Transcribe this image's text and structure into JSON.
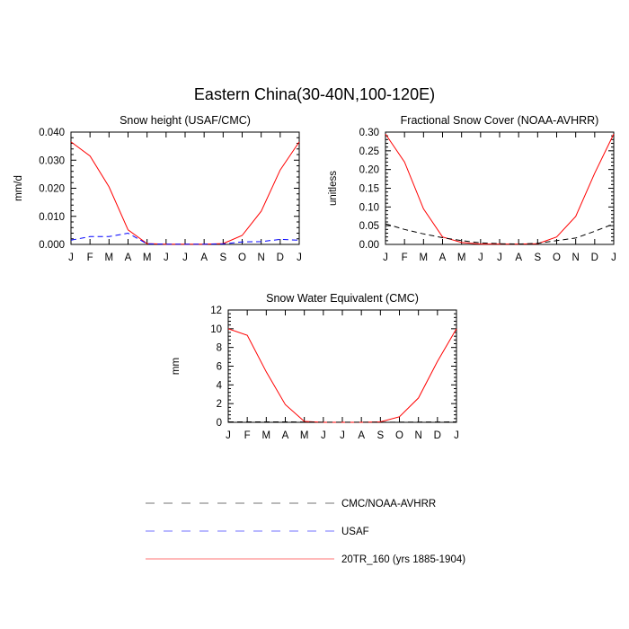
{
  "figure": {
    "title": "Eastern China(30-40N,100-120E)"
  },
  "colors": {
    "model": "#ff0000",
    "usaf": "#0000ff",
    "obs": "#000000"
  },
  "legend": [
    {
      "label": "CMC/NOAA-AVHRR",
      "color": "#000000",
      "dash": "dashed"
    },
    {
      "label": "USAF",
      "color": "#0000ff",
      "dash": "dashed"
    },
    {
      "label": "20TR_160 (yrs 1885-1904)",
      "color": "#ff0000",
      "dash": "solid"
    }
  ],
  "chart_data": [
    {
      "type": "line",
      "title": "Snow height (USAF/CMC)",
      "xlabel": "",
      "ylabel": "mm/d",
      "categories": [
        "J",
        "F",
        "M",
        "A",
        "M",
        "J",
        "J",
        "A",
        "S",
        "O",
        "N",
        "D",
        "J"
      ],
      "ylim": [
        0,
        0.04
      ],
      "yticks": [
        "0.000",
        "0.010",
        "0.020",
        "0.030",
        "0.040"
      ],
      "series": [
        {
          "name": "20TR_160 (yrs 1885-1904)",
          "style": "solid",
          "color": "#ff0000",
          "values": [
            0.0365,
            0.0315,
            0.0205,
            0.0052,
            0.0003,
            0.0001,
            0.0001,
            0.0001,
            0.0003,
            0.0032,
            0.0118,
            0.0265,
            0.0365
          ]
        },
        {
          "name": "USAF",
          "style": "dashed",
          "color": "#0000ff",
          "values": [
            0.0015,
            0.0028,
            0.0028,
            0.004,
            0.0002,
            0.0001,
            0.0001,
            0.0001,
            0.0002,
            0.0009,
            0.001,
            0.0018,
            0.0015
          ]
        }
      ]
    },
    {
      "type": "line",
      "title": "Fractional Snow Cover (NOAA-AVHRR)",
      "xlabel": "",
      "ylabel": "unitless",
      "categories": [
        "J",
        "F",
        "M",
        "A",
        "M",
        "J",
        "J",
        "A",
        "S",
        "O",
        "N",
        "D",
        "J"
      ],
      "ylim": [
        0,
        0.3
      ],
      "yticks": [
        "0.00",
        "0.05",
        "0.10",
        "0.15",
        "0.20",
        "0.25",
        "0.30"
      ],
      "series": [
        {
          "name": "20TR_160 (yrs 1885-1904)",
          "style": "solid",
          "color": "#ff0000",
          "values": [
            0.295,
            0.22,
            0.095,
            0.02,
            0.005,
            0.001,
            0.001,
            0.001,
            0.002,
            0.02,
            0.075,
            0.19,
            0.295
          ]
        },
        {
          "name": "CMC/NOAA-AVHRR",
          "style": "dashed",
          "color": "#000000",
          "values": [
            0.055,
            0.04,
            0.028,
            0.018,
            0.01,
            0.004,
            0.002,
            0.001,
            0.003,
            0.01,
            0.017,
            0.035,
            0.055
          ]
        }
      ]
    },
    {
      "type": "line",
      "title": "Snow Water Equivalent (CMC)",
      "xlabel": "",
      "ylabel": "mm",
      "categories": [
        "J",
        "F",
        "M",
        "A",
        "M",
        "J",
        "J",
        "A",
        "S",
        "O",
        "N",
        "D",
        "J"
      ],
      "ylim": [
        0,
        12
      ],
      "yticks": [
        "0",
        "2",
        "4",
        "6",
        "8",
        "10",
        "12"
      ],
      "series": [
        {
          "name": "20TR_160 (yrs 1885-1904)",
          "style": "solid",
          "color": "#ff0000",
          "values": [
            10.0,
            9.3,
            5.4,
            1.9,
            0.1,
            0.0,
            0.0,
            0.0,
            0.05,
            0.6,
            2.6,
            6.5,
            10.0
          ]
        },
        {
          "name": "CMC/NOAA-AVHRR",
          "style": "dashed",
          "color": "#000000",
          "values": [
            0.05,
            0.05,
            0.05,
            0.05,
            0.03,
            0.01,
            0.01,
            0.01,
            0.01,
            0.02,
            0.03,
            0.04,
            0.05
          ]
        }
      ]
    }
  ]
}
